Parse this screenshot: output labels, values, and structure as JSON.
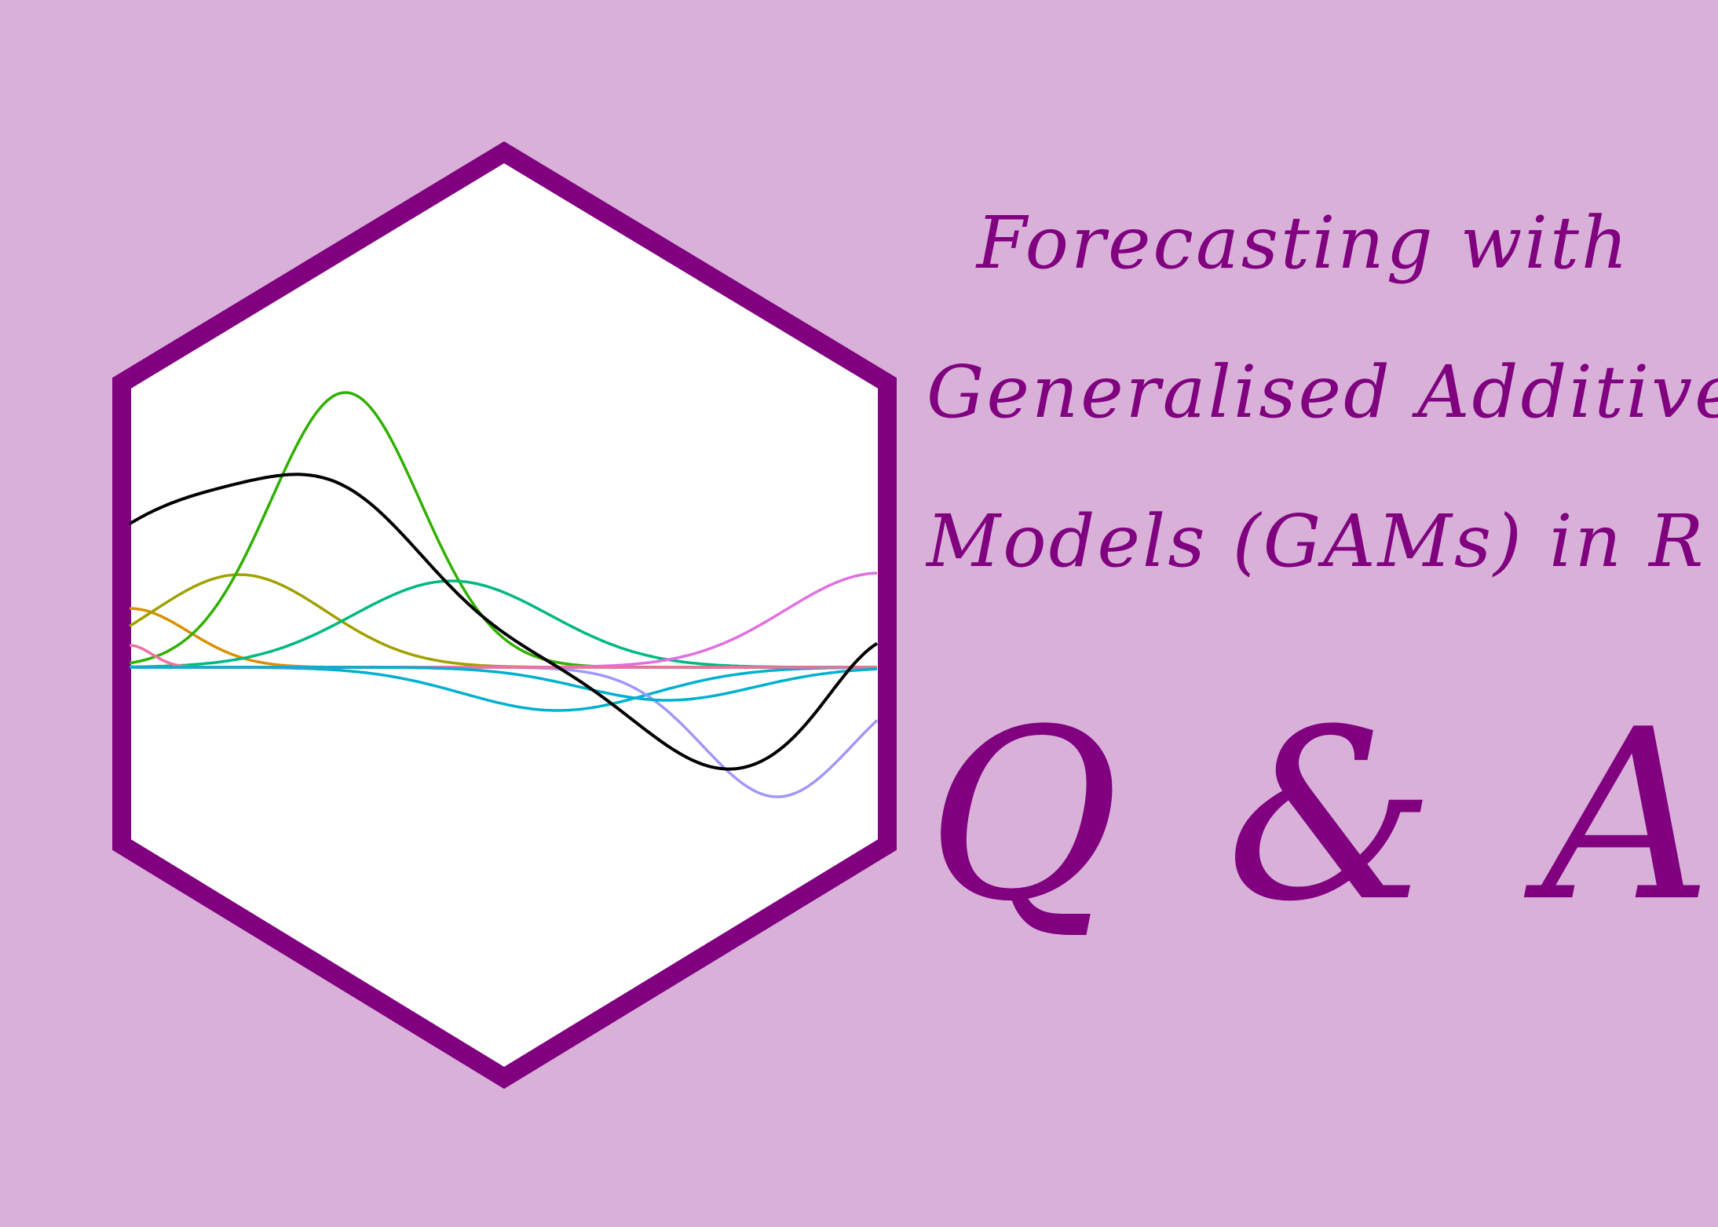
{
  "colors": {
    "background": "#D8B0D8",
    "accent": "#800080",
    "hex_fill": "#FFFFFF"
  },
  "title": {
    "line1": "Forecasting with",
    "line2": "Generalised Additive",
    "line3": "Models (GAMs) in R"
  },
  "qa_label": "Q & A",
  "logo": {
    "description_icon": "gam-basis-functions-hexagon-logo",
    "curve_colors": [
      "#D89000",
      "#A0A000",
      "#30B000",
      "#00B880",
      "#00B0D0",
      "#A098F8",
      "#E070E0",
      "#F070A0",
      "#000000"
    ]
  }
}
